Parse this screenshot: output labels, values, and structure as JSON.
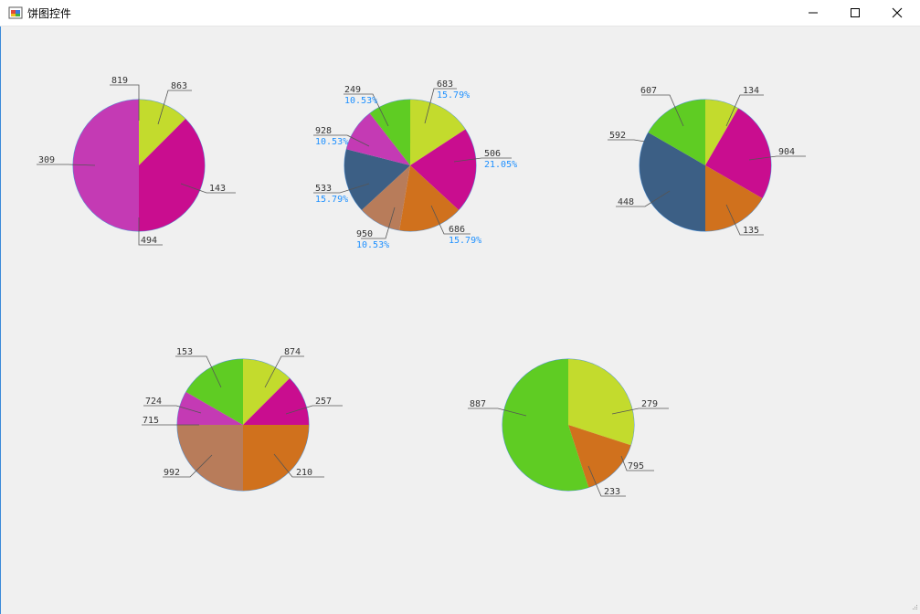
{
  "window": {
    "title": "饼图控件",
    "icon": "app-window-icon",
    "buttons": [
      "minimize",
      "maximize",
      "close"
    ]
  },
  "chart_data": [
    {
      "type": "pie",
      "labels": [
        "863",
        "143",
        "494",
        "309",
        "819"
      ],
      "values": [
        0.125,
        0.375,
        0,
        0.5,
        0
      ],
      "colors": [
        "#c3db2d",
        "#c90d8f",
        "#c90d8f",
        "#c43ab4",
        "#c43ab4"
      ],
      "percent_labels": []
    },
    {
      "type": "pie",
      "labels": [
        "683",
        "506",
        "686",
        "950",
        "533",
        "928",
        "249"
      ],
      "values": [
        0.1579,
        0.2105,
        0.1579,
        0.1053,
        0.1579,
        0.1053,
        0.1053
      ],
      "colors": [
        "#c3db2d",
        "#c90d8f",
        "#d0711d",
        "#b87c5a",
        "#3c5f85",
        "#c43ab4",
        "#5fcc23"
      ],
      "percent_labels": [
        "15.79%",
        "21.05%",
        "15.79%",
        "10.53%",
        "15.79%",
        "10.53%",
        "10.53%"
      ]
    },
    {
      "type": "pie",
      "labels": [
        "134",
        "904",
        "135",
        "448",
        "592",
        "607"
      ],
      "values": [
        0.0833,
        0.25,
        0.1667,
        0.3333,
        0,
        0.1667
      ],
      "colors": [
        "#c3db2d",
        "#c90d8f",
        "#d0711d",
        "#3c5f85",
        "#3c5f85",
        "#5fcc23"
      ],
      "percent_labels": []
    },
    {
      "type": "pie",
      "labels": [
        "874",
        "257",
        "210",
        "992",
        "715",
        "724",
        "153"
      ],
      "values": [
        0.125,
        0.125,
        0.25,
        0.25,
        0,
        0.0833,
        0.1667
      ],
      "colors": [
        "#c3db2d",
        "#c90d8f",
        "#d0711d",
        "#b87c5a",
        "#b87c5a",
        "#c43ab4",
        "#5fcc23"
      ],
      "percent_labels": []
    },
    {
      "type": "pie",
      "labels": [
        "279",
        "795",
        "233",
        "887"
      ],
      "values": [
        0.3,
        0,
        0.15,
        0.55
      ],
      "colors": [
        "#c3db2d",
        "#d0711d",
        "#d0711d",
        "#5fcc23"
      ],
      "percent_labels": []
    }
  ]
}
